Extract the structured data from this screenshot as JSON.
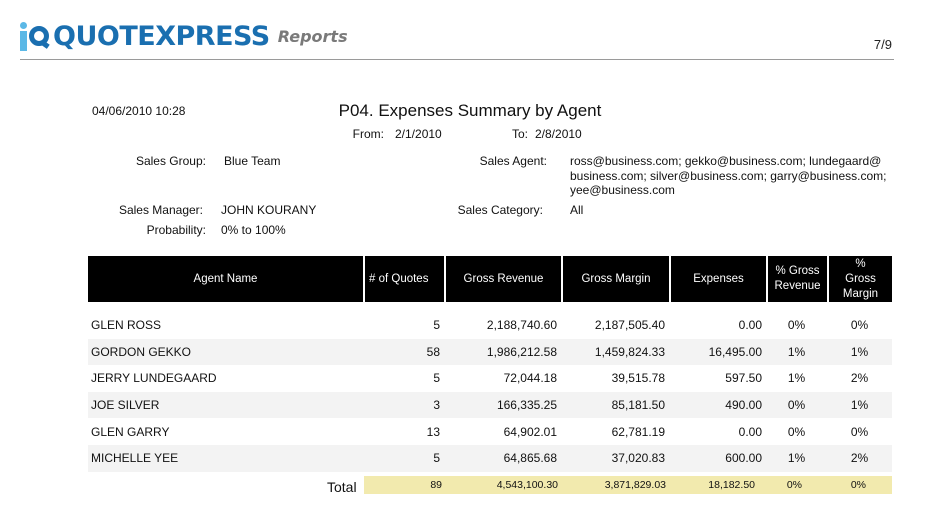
{
  "header": {
    "logo_text": "QUOTEXPRESS",
    "logo_sub": "Reports",
    "page_number": "7/9"
  },
  "report": {
    "generated": "04/06/2010 10:28",
    "title": "P04. Expenses Summary by Agent",
    "from_label": "From:",
    "from_value": "2/1/2010",
    "to_label": "To:",
    "to_value": "2/8/2010",
    "sales_group_label": "Sales Group:",
    "sales_group_value": "Blue Team",
    "sales_agent_label": "Sales Agent:",
    "sales_agent_value": "ross@business.com; gekko@business.com; lundegaard@business.com; silver@business.com; garry@business.com; yee@business.com",
    "sales_agent_lines": [
      "ross@business.com; gekko@business.com; lundegaard@",
      "business.com; silver@business.com; garry@business.com;",
      "yee@business.com"
    ],
    "sales_manager_label": "Sales Manager:",
    "sales_manager_value": "JOHN KOURANY",
    "sales_category_label": "Sales Category:",
    "sales_category_value": "All",
    "probability_label": "Probability:",
    "probability_value": "0% to 100%"
  },
  "table": {
    "headers": [
      "Agent Name",
      "# of Quotes",
      "Gross Revenue",
      "Gross Margin",
      "Expenses",
      "% Gross Revenue",
      "% Gross Margin"
    ],
    "rows": [
      {
        "name": "GLEN ROSS",
        "quotes": "5",
        "revenue": "2,188,740.60",
        "margin": "2,187,505.40",
        "expenses": "0.00",
        "pct_rev": "0%",
        "pct_margin": "0%"
      },
      {
        "name": "GORDON GEKKO",
        "quotes": "58",
        "revenue": "1,986,212.58",
        "margin": "1,459,824.33",
        "expenses": "16,495.00",
        "pct_rev": "1%",
        "pct_margin": "1%"
      },
      {
        "name": "JERRY LUNDEGAARD",
        "quotes": "5",
        "revenue": "72,044.18",
        "margin": "39,515.78",
        "expenses": "597.50",
        "pct_rev": "1%",
        "pct_margin": "2%"
      },
      {
        "name": "JOE SILVER",
        "quotes": "3",
        "revenue": "166,335.25",
        "margin": "85,181.50",
        "expenses": "490.00",
        "pct_rev": "0%",
        "pct_margin": "1%"
      },
      {
        "name": "GLEN GARRY",
        "quotes": "13",
        "revenue": "64,902.01",
        "margin": "62,781.19",
        "expenses": "0.00",
        "pct_rev": "0%",
        "pct_margin": "0%"
      },
      {
        "name": "MICHELLE YEE",
        "quotes": "5",
        "revenue": "64,865.68",
        "margin": "37,020.83",
        "expenses": "600.00",
        "pct_rev": "1%",
        "pct_margin": "2%"
      }
    ],
    "total": {
      "label": "Total",
      "quotes": "89",
      "revenue": "4,543,100.30",
      "margin": "3,871,829.03",
      "expenses": "18,182.50",
      "pct_rev": "0%",
      "pct_margin": "0%"
    }
  },
  "colors": {
    "brand_blue": "#1a6fb0",
    "brand_light_blue": "#5bb8e6",
    "header_bg": "#000000",
    "total_bg": "#f2eaae"
  }
}
